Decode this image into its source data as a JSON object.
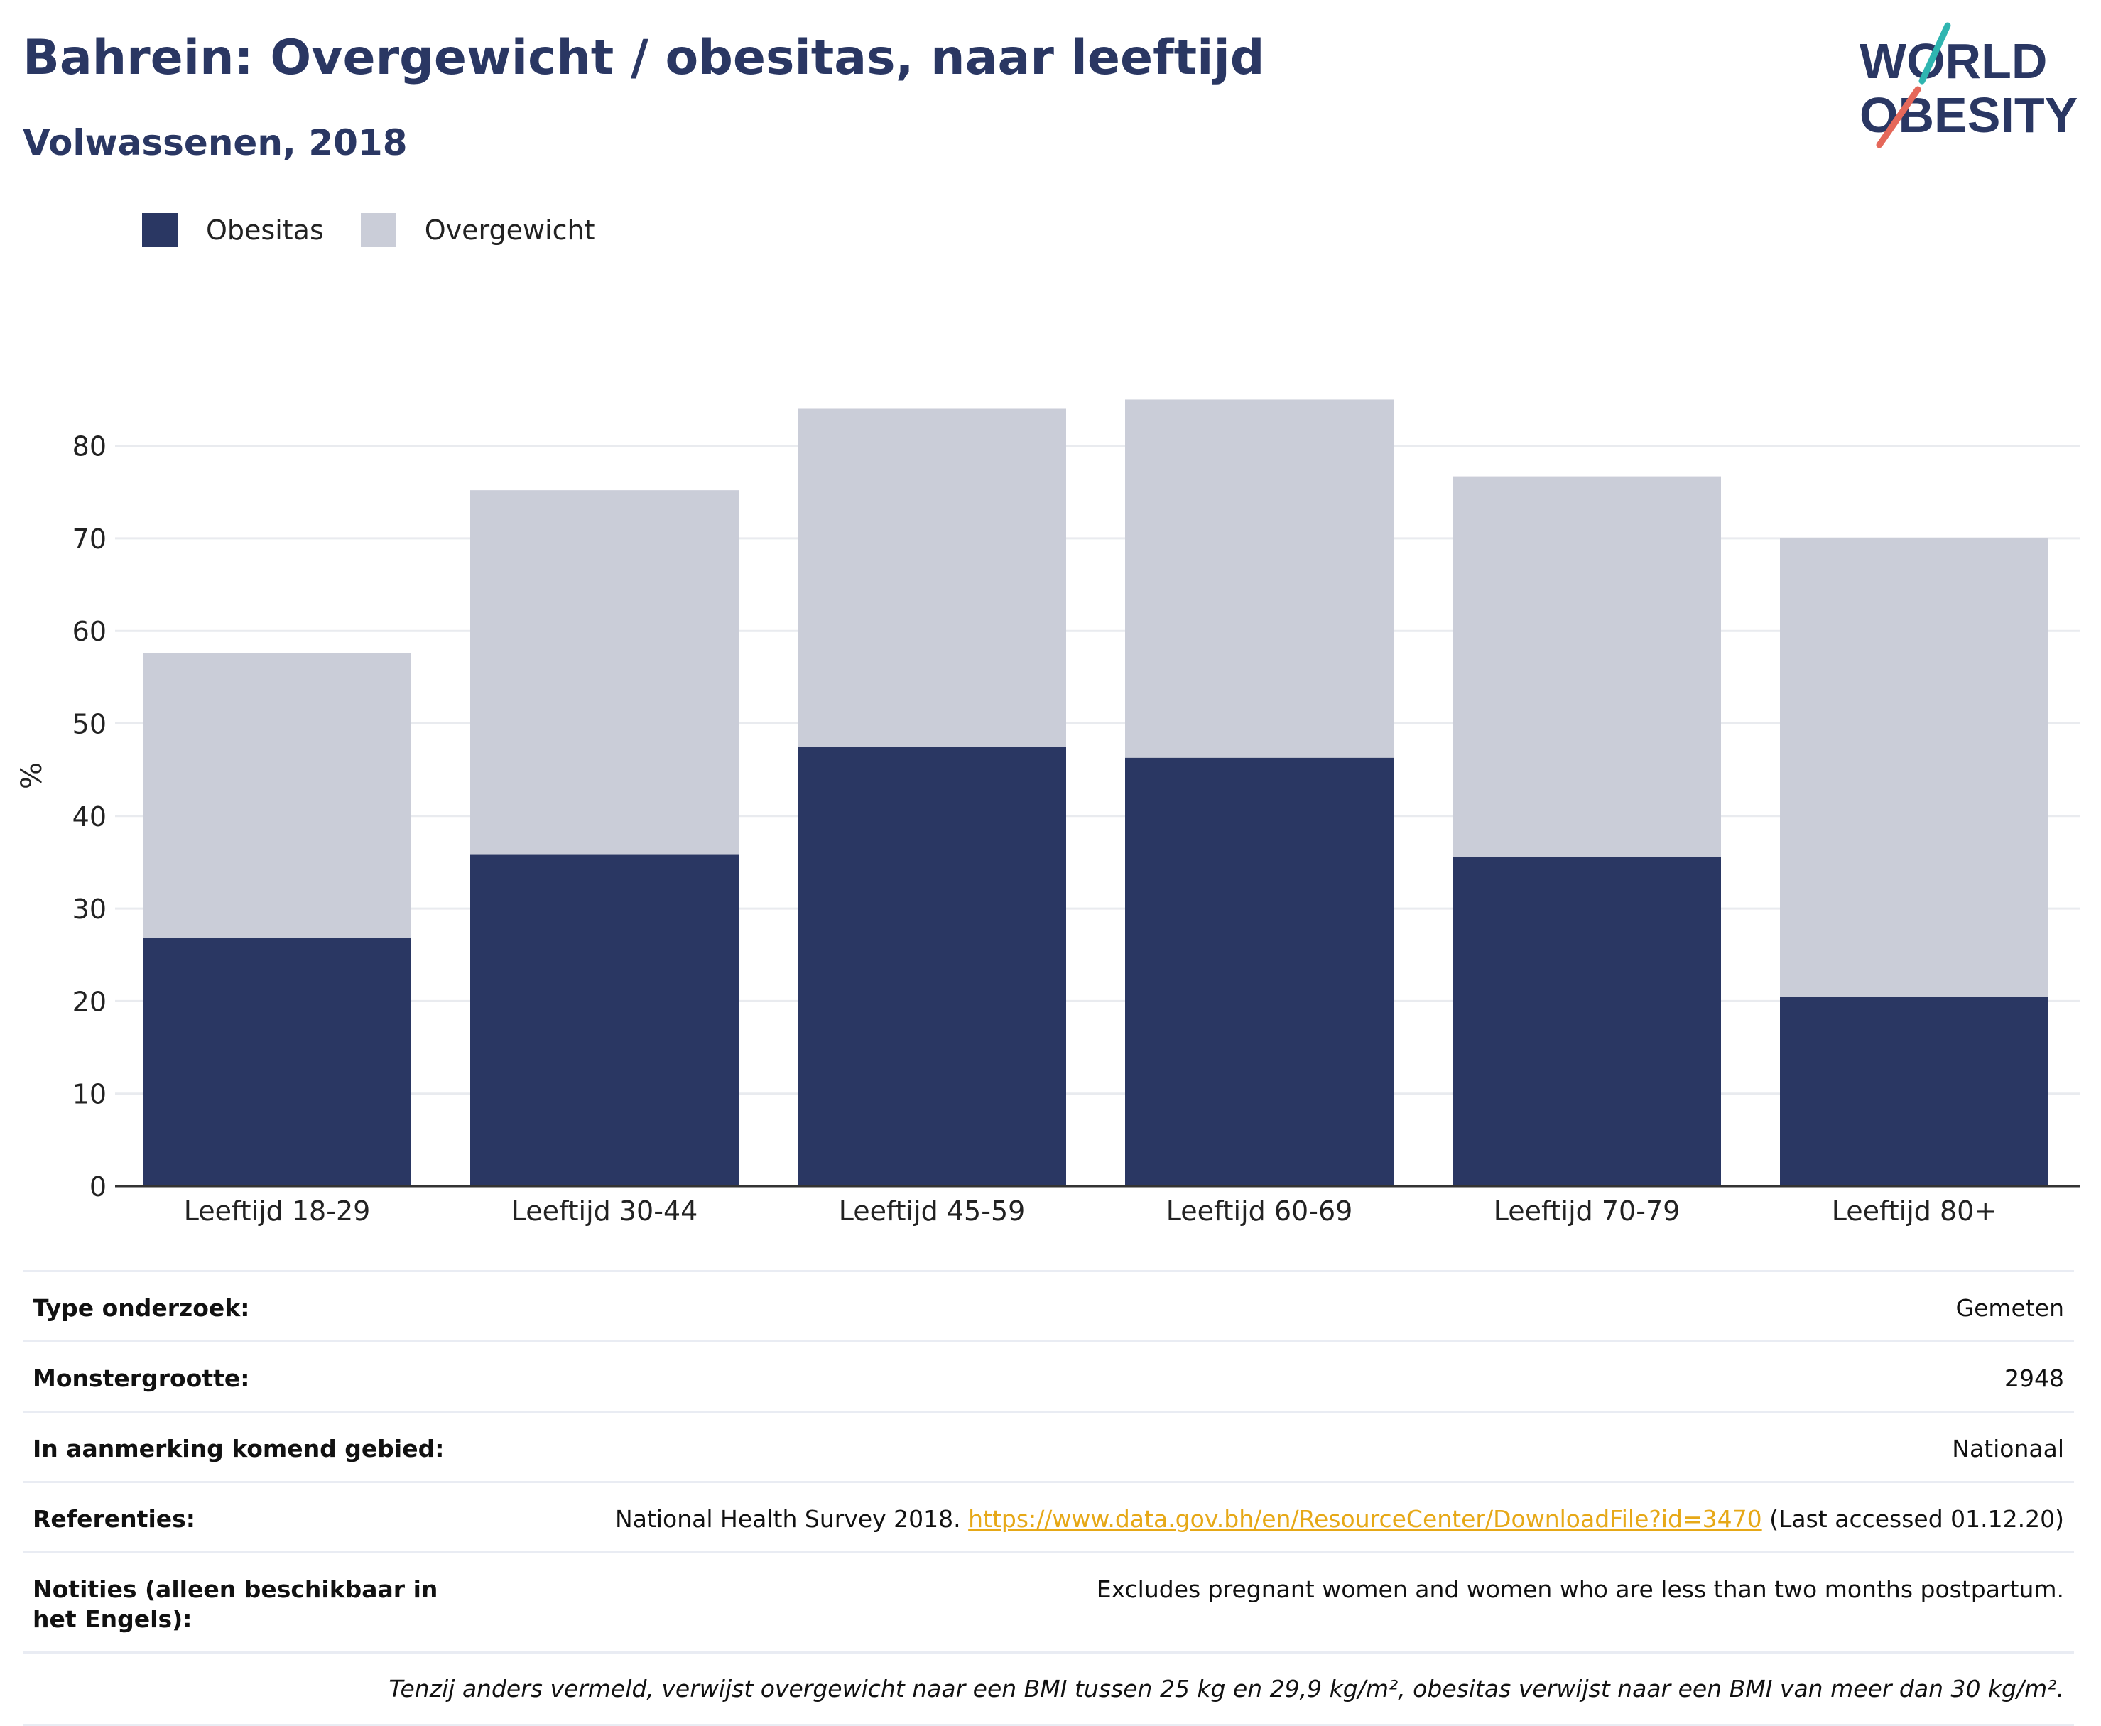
{
  "title": "Bahrein: Overgewicht / obesitas, naar leeftijd",
  "subtitle": "Volwassenen, 2018",
  "logo": {
    "line1": "WORLD",
    "line2": "OBESITY",
    "accent_teal": "#2fb5b0",
    "accent_coral": "#e5685a"
  },
  "colors": {
    "obesitas": "#2a3763",
    "overgewicht": "#cacdd8",
    "text_dark": "#2a3763",
    "link": "#e6a817"
  },
  "chart_data": {
    "type": "bar",
    "stacked": true,
    "categories": [
      "Leeftijd 18-29",
      "Leeftijd 30-44",
      "Leeftijd 45-59",
      "Leeftijd 60-69",
      "Leeftijd 70-79",
      "Leeftijd 80+"
    ],
    "series": [
      {
        "name": "Obesitas",
        "color": "#2a3763",
        "values": [
          26.8,
          35.8,
          47.5,
          46.3,
          35.6,
          20.5
        ]
      },
      {
        "name": "Overgewicht",
        "color": "#cacdd8",
        "values": [
          30.8,
          39.4,
          36.5,
          38.7,
          41.1,
          49.5
        ]
      }
    ],
    "ylabel": "%",
    "ylim": [
      0,
      85
    ],
    "yticks": [
      0,
      10,
      20,
      30,
      40,
      50,
      60,
      70,
      80
    ],
    "grid": true,
    "legend_position": "top-left"
  },
  "info": [
    {
      "label": "Type onderzoek:",
      "value": "Gemeten"
    },
    {
      "label": "Monstergrootte:",
      "value": "2948"
    },
    {
      "label": "In aanmerking komend gebied:",
      "value": "Nationaal"
    },
    {
      "label": "Referenties:",
      "value_prefix": "National Health Survey 2018. ",
      "link": "https://www.data.gov.bh/en/ResourceCenter/DownloadFile?id=3470",
      "value_suffix": " (Last accessed 01.12.20)"
    },
    {
      "label": "Notities (alleen beschikbaar in het Engels):",
      "value": "Excludes pregnant women and women who are less than two months postpartum."
    }
  ],
  "footnote": "Tenzij anders vermeld, verwijst overgewicht naar een BMI tussen 25 kg en 29,9 kg/m², obesitas verwijst naar een BMI van meer dan 30 kg/m²."
}
